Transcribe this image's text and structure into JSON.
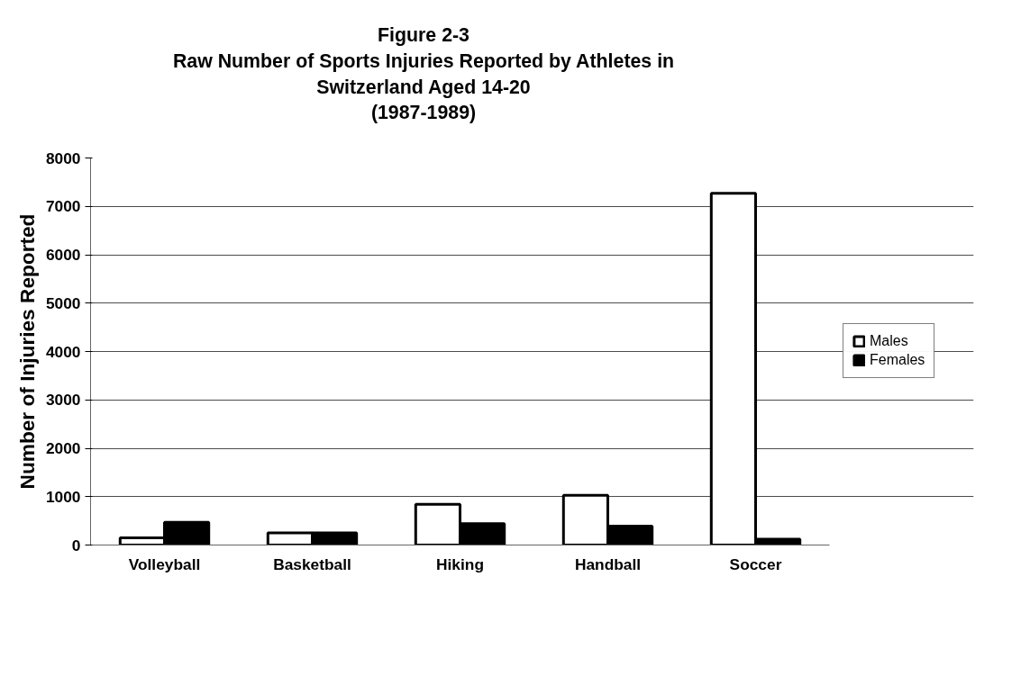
{
  "chart_data": {
    "type": "bar",
    "title": "Figure 2-3\nRaw Number of Sports Injuries Reported by Athletes in\nSwitzerland Aged 14-20\n(1987-1989)",
    "ylabel": "Number of Injuries Reported",
    "categories": [
      "Volleyball",
      "Basketball",
      "Hiking",
      "Handball",
      "Soccer"
    ],
    "series": [
      {
        "name": "Males",
        "color": "#ffffff",
        "values": [
          150,
          250,
          840,
          1030,
          7270
        ]
      },
      {
        "name": "Females",
        "color": "#000000",
        "values": [
          470,
          250,
          440,
          390,
          120
        ]
      }
    ],
    "ylim": [
      0,
      8000
    ],
    "yticks": [
      0,
      1000,
      2000,
      3000,
      4000,
      5000,
      6000,
      7000,
      8000
    ],
    "grid": "y",
    "legend": "right"
  }
}
